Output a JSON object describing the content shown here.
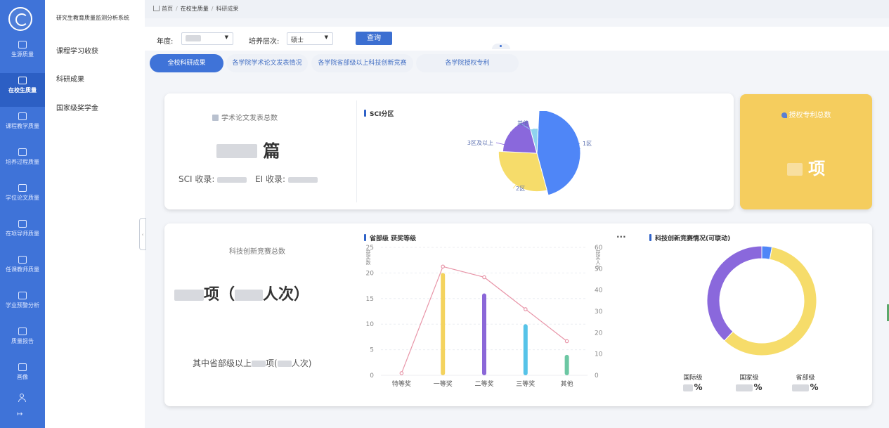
{
  "sidebar": {
    "items": [
      {
        "label": "生源质量"
      },
      {
        "label": "在校生质量",
        "active": true
      },
      {
        "label": "课程教学质量"
      },
      {
        "label": "培养过程质量"
      },
      {
        "label": "学位论文质量"
      },
      {
        "label": "在项导师质量"
      },
      {
        "label": "任课教师质量"
      },
      {
        "label": "学业预警分析"
      },
      {
        "label": "质量报告"
      },
      {
        "label": "画像"
      }
    ]
  },
  "menu": {
    "system_title": "研究生教育质量监测分析系统",
    "items": [
      {
        "label": "课程学习收获"
      },
      {
        "label": "科研成果"
      },
      {
        "label": "国家级奖学金"
      }
    ]
  },
  "breadcrumb": {
    "home": "首页",
    "level1": "在校生质量",
    "level2": "科研成果"
  },
  "filters": {
    "year_label": "年度:",
    "level_label": "培养层次:",
    "level_value": "硕士",
    "query_label": "查询"
  },
  "tabs": [
    {
      "label": "全校科研成果",
      "active": true
    },
    {
      "label": "各学院学术论文发表情况"
    },
    {
      "label": "各学院省部级以上科技创新竞赛"
    },
    {
      "label": "各学院授权专利"
    }
  ],
  "papers": {
    "title": "学术论文发表总数",
    "unit": "篇",
    "sci_label": "SCI 收录:",
    "ei_label": "EI 收录:"
  },
  "sci_chart": {
    "title": "SCI分区",
    "chart_data": {
      "type": "pie",
      "categories": [
        "1区",
        "2区",
        "3区及以上",
        "其他"
      ],
      "values": [
        45,
        30,
        20,
        5
      ]
    }
  },
  "patents": {
    "title": "授权专利总数",
    "unit": "项"
  },
  "competition": {
    "title": "科技创新竞赛总数",
    "unit_items": "项",
    "paren_open": "（",
    "paren_close": "）",
    "unit_persons": "人次",
    "sub_prefix": "其中省部级以上",
    "sub_mid": "项(",
    "sub_suffix": "人次)"
  },
  "award_chart": {
    "title": "省部级 获奖等级",
    "more": "···",
    "left_axis_label": "获奖数",
    "right_axis_label": "获奖人次",
    "chart_data": {
      "type": "bar",
      "categories": [
        "特等奖",
        "一等奖",
        "二等奖",
        "三等奖",
        "其他"
      ],
      "series": [
        {
          "axis": "left",
          "type": "bar",
          "values": [
            0,
            20,
            16,
            10,
            4
          ],
          "colors": [
            "#e5e5e5",
            "#f4d35e",
            "#8b67d8",
            "#56c3e8",
            "#6cc7a3"
          ]
        },
        {
          "axis": "right",
          "type": "line",
          "values": [
            1,
            51,
            46,
            31,
            16
          ],
          "color": "#e895a8"
        }
      ],
      "ylim_left": [
        0,
        25
      ],
      "ylim_right": [
        0,
        60
      ],
      "left_ticks": [
        0,
        5,
        10,
        15,
        20,
        25
      ],
      "right_ticks": [
        0,
        10,
        20,
        30,
        40,
        50,
        60
      ]
    }
  },
  "innovation_chart": {
    "title": "科技创新竞赛情况(可联动)",
    "chart_data": {
      "type": "pie",
      "categories": [
        "国际级",
        "国家级",
        "省部级"
      ],
      "values": [
        3,
        59,
        38
      ]
    },
    "legend": [
      {
        "label": "国际级",
        "pct": "%"
      },
      {
        "label": "国家级",
        "pct": "%"
      },
      {
        "label": "省部级",
        "pct": "%"
      }
    ]
  },
  "colors": {
    "primary": "#3f73d8",
    "pie_blue": "#4f86f7",
    "pie_yellow": "#f6dc6a",
    "pie_purple": "#8a68dc",
    "pie_cyan": "#8fd3ee",
    "patent_card": "#f5cd5e"
  }
}
